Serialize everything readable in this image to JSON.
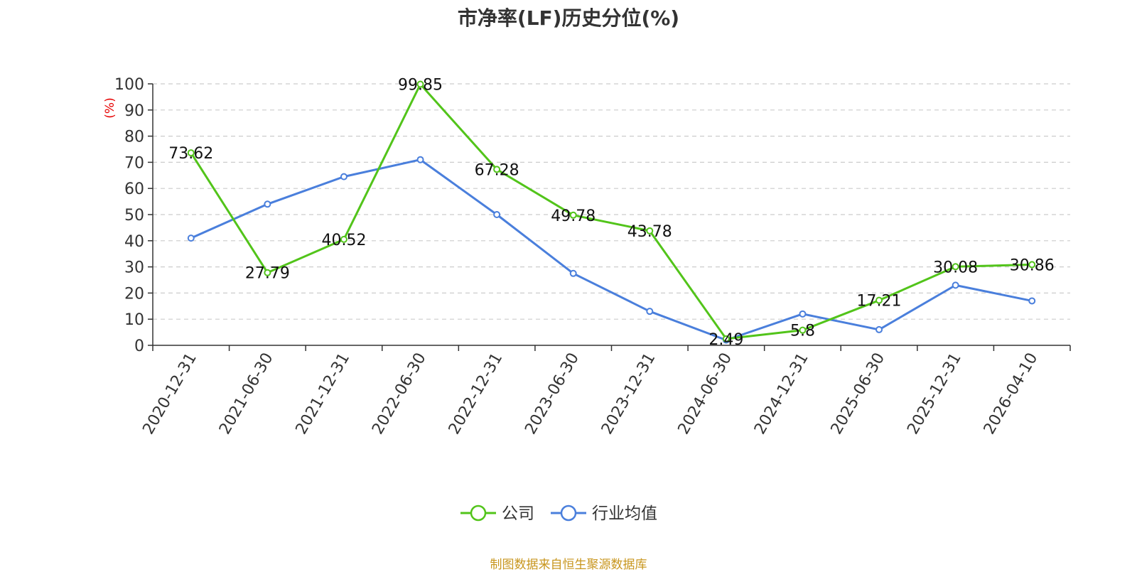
{
  "chart_data": {
    "type": "line",
    "title": "市净率(LF)历史分位(%)",
    "ylabel": "(%)",
    "ylim": [
      0,
      100
    ],
    "yticks": [
      0,
      10,
      20,
      30,
      40,
      50,
      60,
      70,
      80,
      90,
      100
    ],
    "grid": true,
    "legend_position": "bottom",
    "categories": [
      "2020-12-31",
      "2021-06-30",
      "2021-12-31",
      "2022-06-30",
      "2022-12-31",
      "2023-06-30",
      "2023-12-31",
      "2024-06-30",
      "2024-12-31",
      "2025-06-30",
      "2025-12-31",
      "2026-04-10"
    ],
    "series": [
      {
        "name": "公司",
        "color": "#52c41a",
        "values": [
          73.62,
          27.79,
          40.52,
          99.85,
          67.28,
          49.78,
          43.78,
          2.49,
          5.8,
          17.21,
          30.08,
          30.86
        ],
        "data_labels": [
          "73.62",
          "27.79",
          "40.52",
          "99.85",
          "67.28",
          "49.78",
          "43.78",
          "2.49",
          "5.8",
          "17.21",
          "30.08",
          "30.86"
        ]
      },
      {
        "name": "行业均值",
        "color": "#4a7fdc",
        "values": [
          41,
          54,
          64.5,
          71,
          50,
          27.5,
          13,
          2,
          12,
          6,
          23,
          17
        ]
      }
    ]
  },
  "footer": "制图数据来自恒生聚源数据库"
}
